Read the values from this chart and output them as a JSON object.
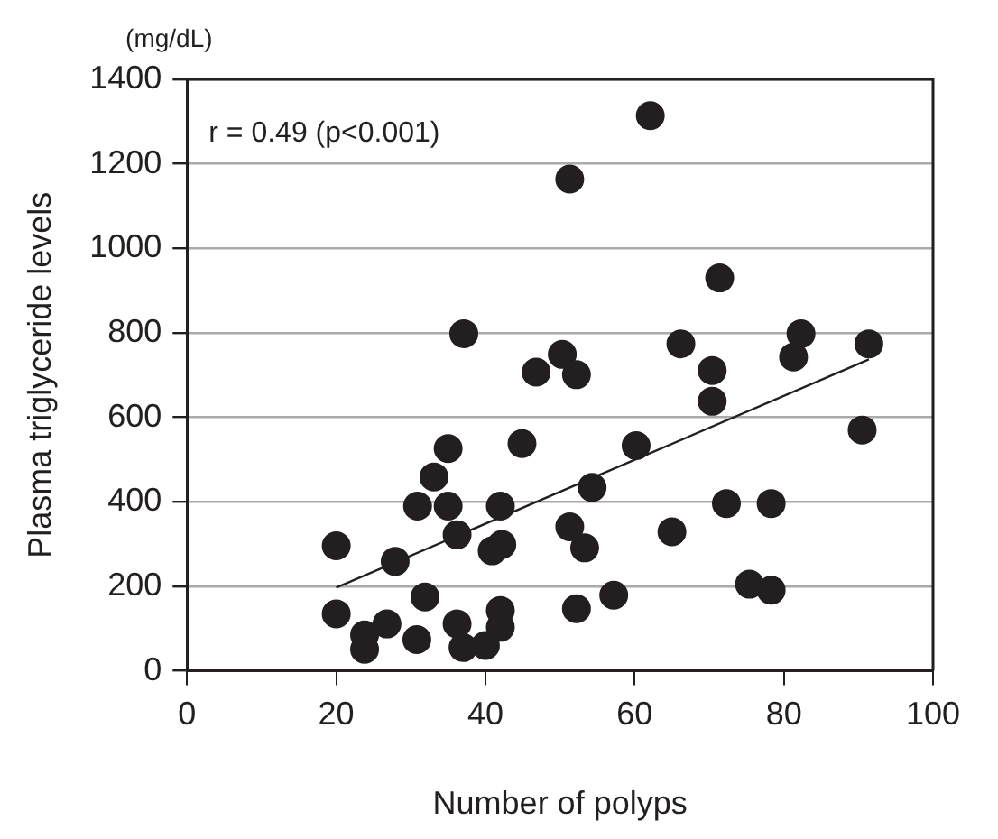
{
  "chart_data": {
    "type": "scatter",
    "xlabel": "Number of polyps",
    "ylabel": "Plasma triglyceride levels",
    "annotations": [
      "(mg/dL)",
      "r = 0.49 (p<0.001)"
    ],
    "xlim": [
      0,
      100
    ],
    "xticks": [
      0,
      20,
      40,
      60,
      80,
      100
    ],
    "ylim": [
      0,
      1400
    ],
    "yticks": [
      0,
      200,
      400,
      600,
      800,
      1000,
      1200,
      1400
    ],
    "grid": "y",
    "legend": false,
    "marker": "circle",
    "series": [
      {
        "color": "#231f20",
        "x": [
          20,
          27.9,
          20,
          23.8,
          23.8,
          26.8,
          30.8,
          31.9,
          30.9,
          33.1,
          35,
          35,
          36.2,
          36.2,
          37,
          37.1,
          40,
          42,
          40.9,
          42.2,
          42,
          42,
          44.9,
          46.8,
          50.3,
          52.2,
          51.3,
          62.1,
          60.2,
          54.3,
          51.3,
          53.3,
          52.2,
          57.2,
          65,
          66.2,
          71.4,
          70.4,
          70.4,
          72.3,
          78.3,
          75.4,
          78.3,
          81.3,
          82.3,
          91.4,
          90.5
        ],
        "values": [
          296,
          259,
          135,
          85,
          51,
          111,
          74,
          175,
          390,
          459,
          526,
          390,
          322,
          111,
          55,
          798,
          60,
          390,
          284,
          299,
          143,
          103,
          538,
          707,
          749,
          701,
          1164,
          1314,
          533,
          434,
          341,
          291,
          147,
          179,
          329,
          774,
          930,
          711,
          638,
          396,
          396,
          205,
          191,
          743,
          798,
          774,
          570
        ]
      },
      {
        "type": "line",
        "color": "#231f20",
        "marker": "none",
        "x": [
          20,
          91.4
        ],
        "values": [
          197,
          737
        ]
      }
    ]
  }
}
